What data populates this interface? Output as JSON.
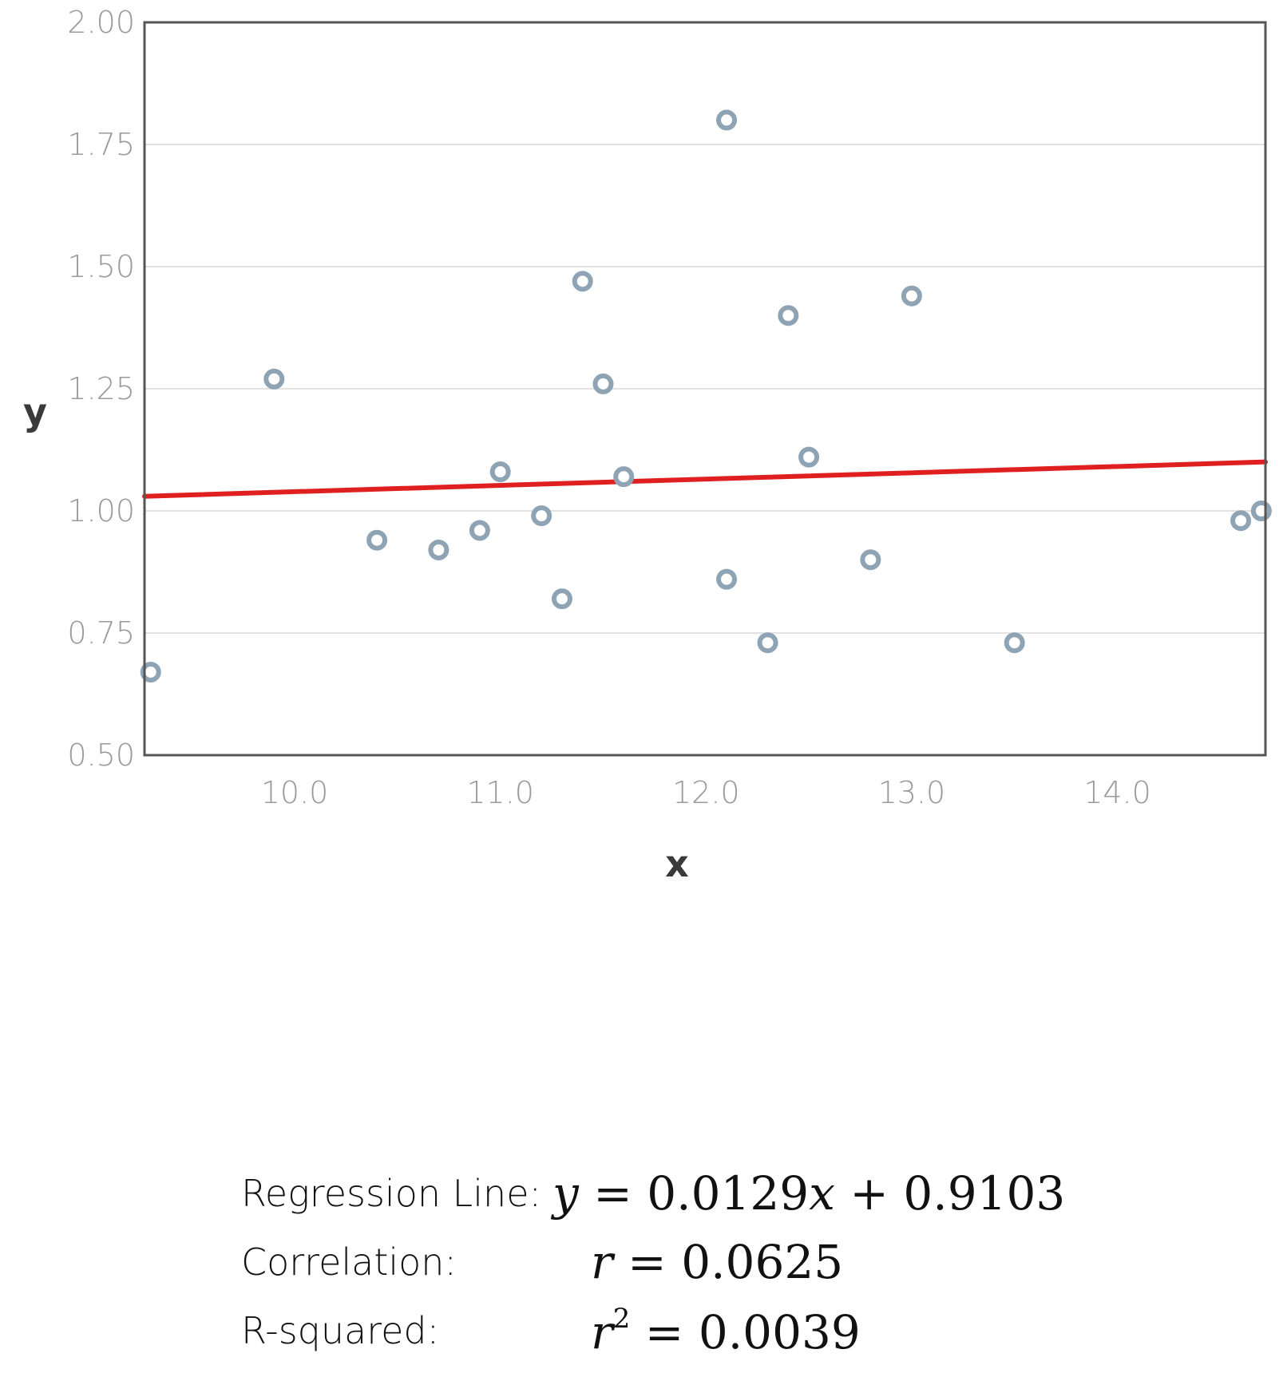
{
  "chart_data": {
    "type": "scatter",
    "xlabel": "x",
    "ylabel": "y",
    "xlim": [
      9.27,
      14.72
    ],
    "ylim": [
      0.5,
      2.0
    ],
    "xticks": [
      "10.0",
      "11.0",
      "12.0",
      "13.0",
      "14.0"
    ],
    "yticks": [
      "0.50",
      "0.75",
      "1.00",
      "1.25",
      "1.50",
      "1.75",
      "2.00"
    ],
    "grid": "horizontal",
    "points": [
      {
        "x": 9.3,
        "y": 0.67
      },
      {
        "x": 9.9,
        "y": 1.27
      },
      {
        "x": 10.4,
        "y": 0.94
      },
      {
        "x": 10.7,
        "y": 0.92
      },
      {
        "x": 10.9,
        "y": 0.96
      },
      {
        "x": 11.0,
        "y": 1.08
      },
      {
        "x": 11.2,
        "y": 0.99
      },
      {
        "x": 11.3,
        "y": 0.82
      },
      {
        "x": 11.4,
        "y": 1.47
      },
      {
        "x": 11.5,
        "y": 1.26
      },
      {
        "x": 11.6,
        "y": 1.07
      },
      {
        "x": 12.1,
        "y": 1.8
      },
      {
        "x": 12.1,
        "y": 0.86
      },
      {
        "x": 12.3,
        "y": 0.73
      },
      {
        "x": 12.4,
        "y": 1.4
      },
      {
        "x": 12.5,
        "y": 1.11
      },
      {
        "x": 12.8,
        "y": 0.9
      },
      {
        "x": 13.0,
        "y": 1.44
      },
      {
        "x": 13.5,
        "y": 0.73
      },
      {
        "x": 14.6,
        "y": 0.98
      },
      {
        "x": 14.7,
        "y": 1.0
      }
    ],
    "regression": {
      "slope": 0.0129,
      "intercept": 0.9103
    },
    "colors": {
      "point_stroke": "#8ea3b3",
      "regression_line": "#e02020",
      "frame": "#555555",
      "grid": "#e2e2e2"
    }
  },
  "stats": {
    "regression_label": "Regression Line:",
    "regression_y": "y",
    "regression_eq": " = 0.0129",
    "regression_x": "x",
    "regression_rest": " + 0.9103",
    "correlation_label": "Correlation:",
    "correlation_var": "r",
    "correlation_eq": " = 0.0625",
    "rsquared_label": "R-squared:",
    "rsquared_var": "r",
    "rsquared_exp": "2",
    "rsquared_eq": " = 0.0039"
  }
}
